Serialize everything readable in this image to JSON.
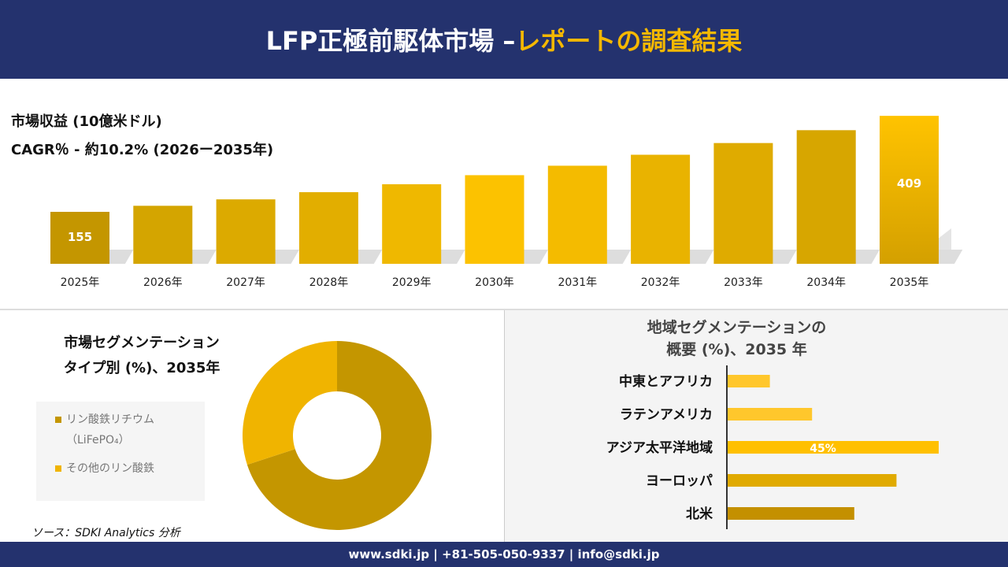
{
  "header": {
    "title_white": "LFP正極前駆体市場 –",
    "title_yellow": "レポートの調査結果"
  },
  "revenue": {
    "title": "市場収益 (10億米ドル)",
    "cagr": "CAGR％ - 約10.2% (2026ー2035年)"
  },
  "chart_data": [
    {
      "type": "bar",
      "categories": [
        "2025年",
        "2026年",
        "2027年",
        "2028年",
        "2029年",
        "2030年",
        "2031年",
        "2032年",
        "2033年",
        "2034年",
        "2035年"
      ],
      "values": [
        155,
        171,
        188,
        207,
        228,
        252,
        277,
        306,
        337,
        371,
        409
      ],
      "data_labels": {
        "2025年": "155",
        "2035年": "409"
      },
      "colors": [
        "#c49600",
        "#d4a500",
        "#dcaa00",
        "#e2ae00",
        "#efb800",
        "#fcc200",
        "#f4bb00",
        "#e9b300",
        "#dfab00",
        "#d7a600",
        "#ffc300"
      ],
      "ylabel": "市場収益 (10億米ドル)",
      "grid": false
    },
    {
      "type": "pie",
      "title": "市場セグメンテーション タイプ別 (%)、2035年",
      "categories": [
        "リン酸鉄リチウム（LiFePO₄）",
        "その他のリン酸鉄"
      ],
      "values": [
        70,
        30
      ],
      "colors": [
        "#c49600",
        "#f0b400"
      ],
      "legend": "left"
    },
    {
      "type": "bar",
      "orientation": "horizontal",
      "title": "地域セグメンテーションの 概要 (%)、2035 年",
      "categories": [
        "中東とアフリカ",
        "ラテンアメリカ",
        "アジア太平洋地域",
        "ヨーロッパ",
        "北米"
      ],
      "values": [
        9,
        18,
        45,
        36,
        27
      ],
      "data_labels": {
        "アジア太平洋地域": "45%"
      },
      "colors": [
        "#ffc72c",
        "#ffc72c",
        "#ffc000",
        "#e0aa00",
        "#c49000"
      ]
    }
  ],
  "segment": {
    "title1": "市場セグメンテーション",
    "title2": "タイプ別 (%)、2035年",
    "legend1a": "リン酸鉄リチウム",
    "legend1b": "（LiFePO₄）",
    "legend2": "その他のリン酸鉄"
  },
  "region": {
    "title1": "地域セグメンテーションの",
    "title2": "概要 (%)、2035 年"
  },
  "source": "ソース：SDKI Analytics 分析",
  "footer": "www.sdki.jp | +81-505-050-9337 | info@sdki.jp"
}
